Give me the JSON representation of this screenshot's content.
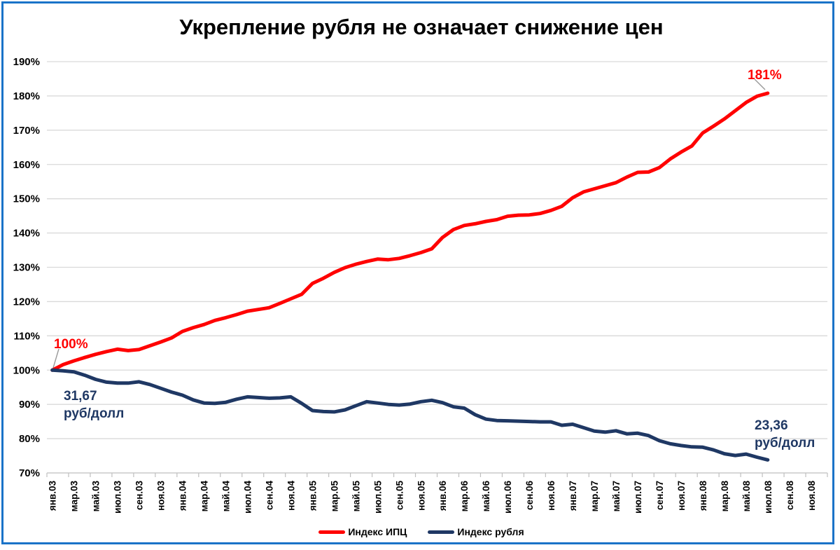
{
  "title": "Укрепление рубля не означает снижение цен",
  "legend": [
    {
      "label": "Индекс ИПЦ",
      "color": "#ff0000"
    },
    {
      "label": "Индекс рубля",
      "color": "#1f3864"
    }
  ],
  "annotations": {
    "cpi_start": {
      "text": "100%",
      "color": "#ff0000"
    },
    "cpi_end": {
      "text": "181%",
      "color": "#ff0000"
    },
    "ruble_start": {
      "line1": "31,67",
      "line2": "руб/долл",
      "color": "#1f3864"
    },
    "ruble_end": {
      "line1": "23,36",
      "line2": "руб/долл",
      "color": "#1f3864"
    }
  },
  "chart_data": {
    "type": "line",
    "title": "Укрепление рубля не означает снижение цен",
    "xlabel": "",
    "ylabel": "",
    "ylim": [
      70,
      190
    ],
    "y_step": 10,
    "grid": true,
    "legend_position": "bottom",
    "y_tick_labels": [
      "190%",
      "180%",
      "170%",
      "160%",
      "150%",
      "140%",
      "130%",
      "120%",
      "110%",
      "100%",
      "90%",
      "80%",
      "70%"
    ],
    "x_tick_labels": [
      "янв.03",
      "мар.03",
      "май.03",
      "июл.03",
      "сен.03",
      "ноя.03",
      "янв.04",
      "мар.04",
      "май.04",
      "июл.04",
      "сен.04",
      "ноя.04",
      "янв.05",
      "мар.05",
      "май.05",
      "июл.05",
      "сен.05",
      "ноя.05",
      "янв.06",
      "мар.06",
      "май.06",
      "июл.06",
      "сен.06",
      "ноя.06",
      "янв.07",
      "мар.07",
      "май.07",
      "июл.07",
      "сен.07",
      "ноя.07",
      "янв.08",
      "мар.08",
      "май.08",
      "июл.08",
      "сен.08",
      "ноя.08"
    ],
    "x_is_monthly": true,
    "x_start_month": "янв.03",
    "x_end_month_with_data": "июл.08",
    "series": [
      {
        "name": "Индекс ИПЦ",
        "color": "#ff0000",
        "values": [
          100,
          101.6,
          102.7,
          103.7,
          104.6,
          105.4,
          106.1,
          105.7,
          106.0,
          107.1,
          108.2,
          109.4,
          111.3,
          112.4,
          113.3,
          114.5,
          115.3,
          116.2,
          117.2,
          117.7,
          118.2,
          119.5,
          120.8,
          122.1,
          125.3,
          126.8,
          128.5,
          129.9,
          130.9,
          131.7,
          132.4,
          132.2,
          132.6,
          133.4,
          134.3,
          135.4,
          138.7,
          141.0,
          142.2,
          142.7,
          143.4,
          143.9,
          144.9,
          145.2,
          145.3,
          145.7,
          146.6,
          147.8,
          150.3,
          152.0,
          152.9,
          153.8,
          154.7,
          156.3,
          157.7,
          157.8,
          159.1,
          161.6,
          163.6,
          165.4,
          169.2,
          171.2,
          173.3,
          175.7,
          178.1,
          179.9,
          180.8
        ]
      },
      {
        "name": "Индекс рубля",
        "color": "#1f3864",
        "values": [
          100,
          99.8,
          99.5,
          98.5,
          97.3,
          96.5,
          96.2,
          96.2,
          96.6,
          95.8,
          94.7,
          93.6,
          92.7,
          91.3,
          90.4,
          90.3,
          90.6,
          91.5,
          92.2,
          92.0,
          91.8,
          91.9,
          92.2,
          90.3,
          88.2,
          87.9,
          87.8,
          88.4,
          89.6,
          90.8,
          90.4,
          90.0,
          89.8,
          90.1,
          90.8,
          91.2,
          90.5,
          89.3,
          88.9,
          87.0,
          85.7,
          85.3,
          85.2,
          85.1,
          85.0,
          84.9,
          84.9,
          83.9,
          84.2,
          83.2,
          82.2,
          81.9,
          82.3,
          81.4,
          81.6,
          80.9,
          79.4,
          78.5,
          78.0,
          77.6,
          77.5,
          76.7,
          75.6,
          75.1,
          75.5,
          74.6,
          73.8
        ]
      }
    ],
    "point_annotations": [
      {
        "text": "100%",
        "series": "Индекс ИПЦ",
        "month_index": 0,
        "value": 100
      },
      {
        "text": "181%",
        "series": "Индекс ИПЦ",
        "month_index": 66,
        "value": 180.8
      },
      {
        "text": "31,67 руб/долл",
        "series": "Индекс рубля",
        "month_index": 0,
        "value": 100
      },
      {
        "text": "23,36 руб/долл",
        "series": "Индекс рубля",
        "month_index": 66,
        "value": 73.8
      }
    ]
  },
  "colors": {
    "frame_border": "#1a73c8",
    "gridline": "#d9d9d9",
    "axis": "#bfbfbf",
    "leader_line": "#999999"
  }
}
